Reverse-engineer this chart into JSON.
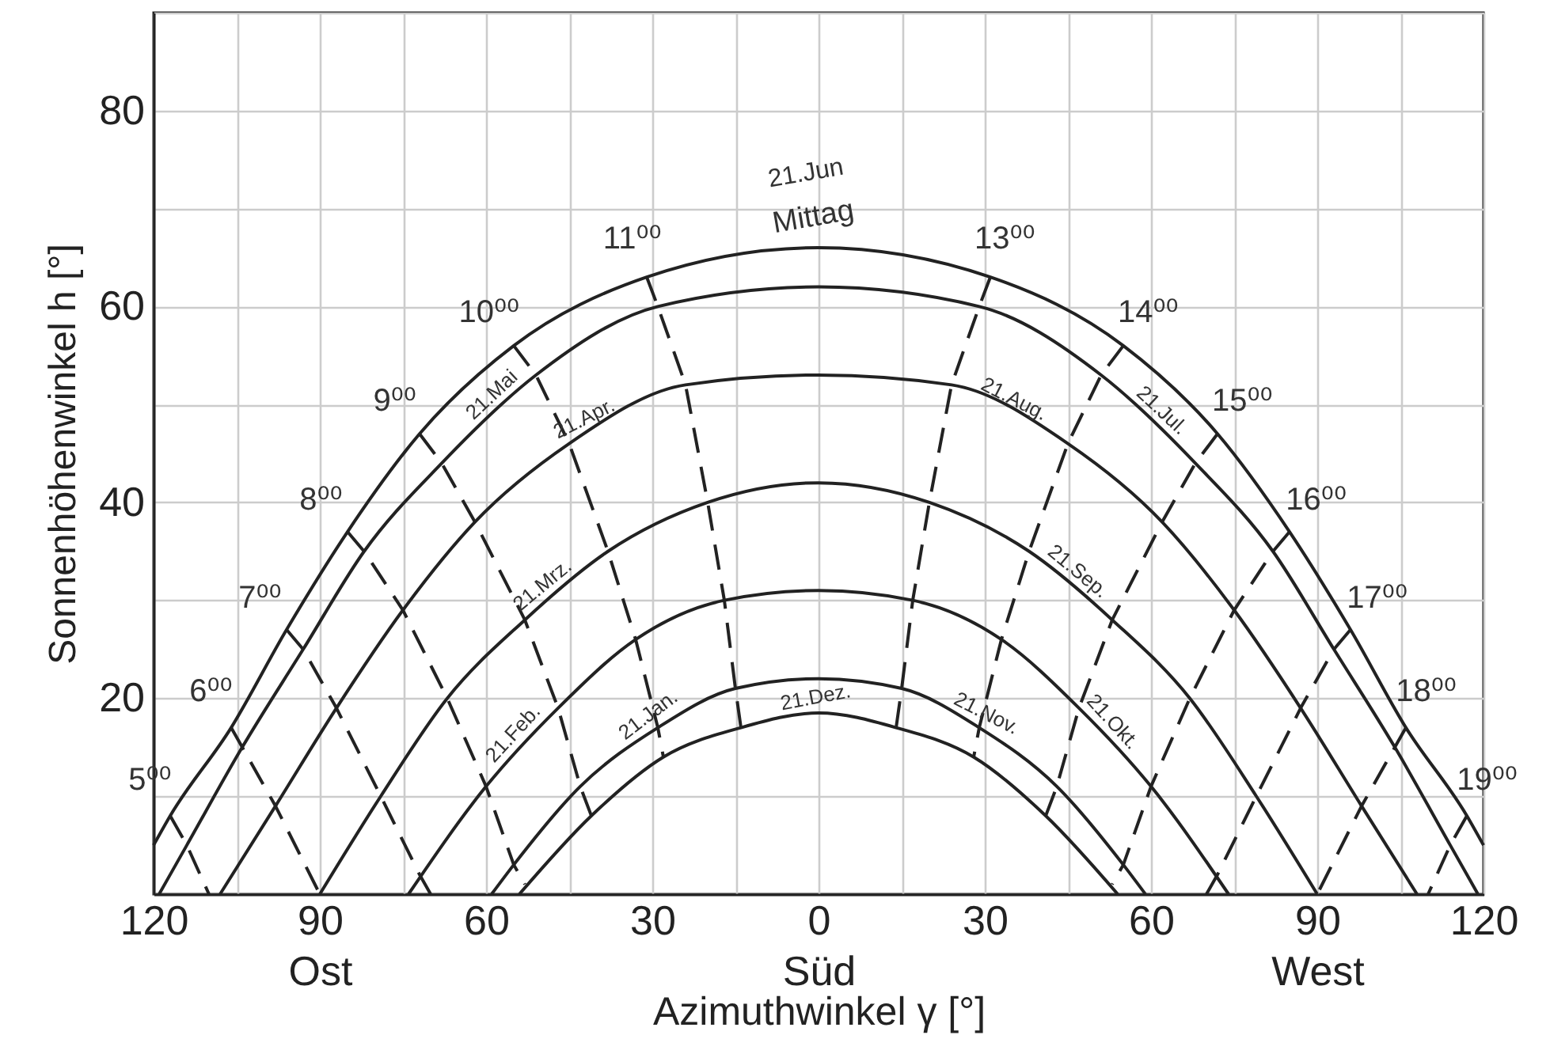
{
  "chart_data": {
    "type": "line",
    "xlabel": "Azimuthwinkel γ [°]",
    "ylabel": "Sonnenhöhenwinkel h [°]",
    "xlim": [
      -120,
      120
    ],
    "xticks": [
      {
        "value": -120,
        "label": "120"
      },
      {
        "value": -105,
        "label": null
      },
      {
        "value": -90,
        "label": "90\nOst"
      },
      {
        "value": -75,
        "label": null
      },
      {
        "value": -60,
        "label": "60"
      },
      {
        "value": -45,
        "label": null
      },
      {
        "value": -30,
        "label": "30"
      },
      {
        "value": -15,
        "label": null
      },
      {
        "value": 0,
        "label": "0\nSüd"
      },
      {
        "value": 15,
        "label": null
      },
      {
        "value": 30,
        "label": "30"
      },
      {
        "value": 45,
        "label": null
      },
      {
        "value": 60,
        "label": "60"
      },
      {
        "value": 75,
        "label": null
      },
      {
        "value": 90,
        "label": "90\nWest"
      },
      {
        "value": 105,
        "label": null
      },
      {
        "value": 120,
        "label": "120"
      }
    ],
    "ylim": [
      0,
      90
    ],
    "yticks": [
      {
        "value": 0,
        "label": null
      },
      {
        "value": 10,
        "label": null
      },
      20,
      {
        "value": 30,
        "label": null
      },
      40,
      {
        "value": 50,
        "label": null
      },
      60,
      {
        "value": 70,
        "label": null
      },
      80,
      {
        "value": 90,
        "label": null
      }
    ],
    "grid": true,
    "series": [
      {
        "color": "#222222",
        "line_style": "solid",
        "x": [
          -120,
          -117,
          -106,
          -96,
          -85,
          -72,
          -55,
          -31,
          0,
          31,
          55,
          72,
          85,
          96,
          106,
          117,
          120
        ],
        "values": [
          5,
          8,
          17,
          27,
          37,
          47,
          56,
          63,
          66,
          63,
          56,
          47,
          37,
          27,
          17,
          8,
          5
        ]
      },
      {
        "color": "#222222",
        "line_style": "solid",
        "x": [
          -119,
          -114,
          -104,
          -93,
          -82,
          -68,
          -51,
          -29,
          0,
          29,
          51,
          68,
          82,
          93,
          104,
          114,
          119
        ],
        "values": [
          0,
          5,
          15,
          25,
          35,
          44,
          53,
          60,
          62,
          60,
          53,
          44,
          35,
          25,
          15,
          5,
          0
        ]
      },
      {
        "color": "#222222",
        "line_style": "solid",
        "x": [
          -108,
          -98,
          -87,
          -75,
          -62,
          -45,
          -24,
          0,
          24,
          45,
          62,
          75,
          87,
          98,
          108
        ],
        "values": [
          0,
          9,
          19,
          29,
          38,
          46,
          52,
          53,
          52,
          46,
          38,
          29,
          19,
          9,
          0
        ]
      },
      {
        "color": "#222222",
        "line_style": "solid",
        "x": [
          -90,
          -79,
          -67,
          -53,
          -38,
          -20,
          0,
          20,
          38,
          53,
          67,
          79,
          90
        ],
        "values": [
          0,
          10,
          20,
          28,
          35,
          40,
          42,
          40,
          35,
          28,
          20,
          10,
          0
        ]
      },
      {
        "color": "#222222",
        "line_style": "solid",
        "x": [
          -74,
          -60,
          -47,
          -33,
          -17,
          0,
          17,
          33,
          47,
          60,
          74
        ],
        "values": [
          0,
          11,
          19,
          26,
          30,
          31,
          30,
          26,
          19,
          11,
          0
        ]
      },
      {
        "color": "#222222",
        "line_style": "solid",
        "x": [
          -59,
          -55,
          -43,
          -29,
          -15,
          0,
          15,
          29,
          43,
          55,
          59
        ],
        "values": [
          0,
          3,
          11,
          17,
          21,
          22,
          21,
          17,
          11,
          3,
          0
        ]
      },
      {
        "color": "#222222",
        "line_style": "solid",
        "x": [
          -54,
          -41,
          -28,
          -14,
          0,
          14,
          28,
          41,
          54
        ],
        "values": [
          0,
          8,
          14,
          17,
          18.5,
          17,
          14,
          8,
          0
        ]
      },
      {
        "color": "#222222",
        "line_style": "dashed",
        "x": [
          -117,
          -114,
          -110
        ],
        "values": [
          8,
          5,
          0
        ]
      },
      {
        "color": "#222222",
        "line_style": "dashed",
        "x": [
          -106,
          -104,
          -98,
          -90
        ],
        "values": [
          17,
          15,
          9,
          0
        ]
      },
      {
        "color": "#222222",
        "line_style": "dashed",
        "x": [
          -96,
          -93,
          -87,
          -79,
          -72,
          -70
        ],
        "values": [
          27,
          25,
          19,
          10,
          2,
          0
        ]
      },
      {
        "color": "#222222",
        "line_style": "dashed",
        "x": [
          -85,
          -82,
          -75,
          -67,
          -60,
          -55,
          -53
        ],
        "values": [
          37,
          35,
          29,
          20,
          11,
          3,
          1
        ]
      },
      {
        "color": "#222222",
        "line_style": "dashed",
        "x": [
          -72,
          -68,
          -62,
          -53,
          -47,
          -43,
          -41
        ],
        "values": [
          47,
          44,
          38,
          28,
          19,
          11,
          8
        ]
      },
      {
        "color": "#222222",
        "line_style": "dashed",
        "x": [
          -55,
          -51,
          -45,
          -38,
          -33,
          -29,
          -28
        ],
        "values": [
          56,
          53,
          46,
          35,
          26,
          17,
          14
        ]
      },
      {
        "color": "#222222",
        "line_style": "dashed",
        "x": [
          -31,
          -29,
          -24,
          -20,
          -17,
          -15,
          -14
        ],
        "values": [
          63,
          60,
          52,
          40,
          30,
          21,
          17
        ]
      },
      {
        "color": "#222222",
        "line_style": "dashed",
        "x": [
          31,
          29,
          24,
          20,
          17,
          15,
          14
        ],
        "values": [
          63,
          60,
          52,
          40,
          30,
          21,
          17
        ]
      },
      {
        "color": "#222222",
        "line_style": "dashed",
        "x": [
          55,
          51,
          45,
          38,
          33,
          29,
          28
        ],
        "values": [
          56,
          53,
          46,
          35,
          26,
          17,
          14
        ]
      },
      {
        "color": "#222222",
        "line_style": "dashed",
        "x": [
          72,
          68,
          62,
          53,
          47,
          43,
          41
        ],
        "values": [
          47,
          44,
          38,
          28,
          19,
          11,
          8
        ]
      },
      {
        "color": "#222222",
        "line_style": "dashed",
        "x": [
          85,
          82,
          75,
          67,
          60,
          55,
          53
        ],
        "values": [
          37,
          35,
          29,
          20,
          11,
          3,
          1
        ]
      },
      {
        "color": "#222222",
        "line_style": "dashed",
        "x": [
          96,
          93,
          87,
          79,
          72,
          70
        ],
        "values": [
          27,
          25,
          19,
          10,
          2,
          0
        ]
      },
      {
        "color": "#222222",
        "line_style": "dashed",
        "x": [
          106,
          104,
          98,
          90
        ],
        "values": [
          17,
          15,
          9,
          0
        ]
      },
      {
        "color": "#222222",
        "line_style": "dashed",
        "x": [
          117,
          114,
          110
        ],
        "values": [
          8,
          5,
          0
        ]
      }
    ],
    "annotations": [
      {
        "text": "21.Jun",
        "x": 0,
        "y": 66
      },
      {
        "text": "Mittag",
        "x": 0,
        "y": 66
      },
      {
        "text": "21.Mai",
        "x": -57,
        "y": 49.8
      },
      {
        "text": "21.Apr.",
        "x": -41,
        "y": 47.1
      },
      {
        "text": "21.Mrz.",
        "x": -48,
        "y": 30.3
      },
      {
        "text": "21.Feb.",
        "x": -53,
        "y": 15.3
      },
      {
        "text": "21.Jan.",
        "x": -29,
        "y": 17
      },
      {
        "text": "21.Dez.",
        "x": 0,
        "y": 18.5
      },
      {
        "text": "21.Jul.",
        "x": 60,
        "y": 48.2
      },
      {
        "text": "21.Aug.",
        "x": 34,
        "y": 49.1
      },
      {
        "text": "21.Sep.",
        "x": 45,
        "y": 31.7
      },
      {
        "text": "21.Okt.",
        "x": 51,
        "y": 16.5
      },
      {
        "text": "21.Nov.",
        "x": 29,
        "y": 17
      },
      {
        "text": "5⁰⁰",
        "x": -117,
        "y": 8
      },
      {
        "text": "6⁰⁰",
        "x": -106,
        "y": 17
      },
      {
        "text": "7⁰⁰",
        "x": -96,
        "y": 27
      },
      {
        "text": "8⁰⁰",
        "x": -85,
        "y": 37
      },
      {
        "text": "9⁰⁰",
        "x": -72,
        "y": 47
      },
      {
        "text": "10⁰⁰",
        "x": -55,
        "y": 56
      },
      {
        "text": "11⁰⁰",
        "x": -31,
        "y": 63
      },
      {
        "text": "13⁰⁰",
        "x": 31,
        "y": 63
      },
      {
        "text": "14⁰⁰",
        "x": 55,
        "y": 56
      },
      {
        "text": "15⁰⁰",
        "x": 72,
        "y": 47
      },
      {
        "text": "16⁰⁰",
        "x": 85,
        "y": 37
      },
      {
        "text": "17⁰⁰",
        "x": 96,
        "y": 27
      },
      {
        "text": "18⁰⁰",
        "x": 106,
        "y": 17
      },
      {
        "text": "19⁰⁰",
        "x": 117,
        "y": 8
      }
    ]
  }
}
